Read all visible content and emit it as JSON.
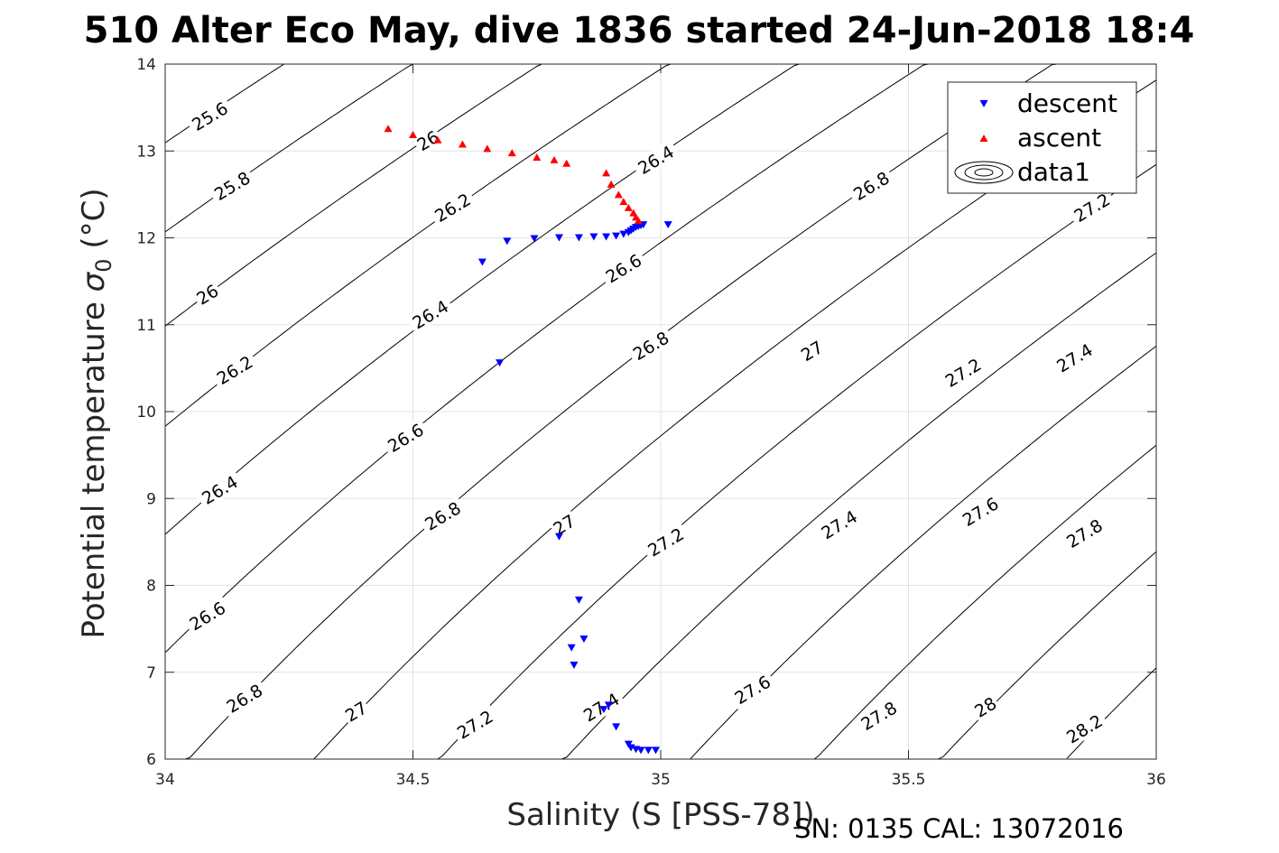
{
  "chart_data": {
    "type": "scatter",
    "title": "510 Alter Eco May, dive 1836 started 24-Jun-2018 18:4",
    "xlabel": "Salinity (S [PSS-78])",
    "ylabel_prefix": "Potential temperature ",
    "ylabel_symbol": "σ",
    "ylabel_sub": "0",
    "ylabel_suffix": " (°C)",
    "footer": "SN: 0135  CAL: 13072016",
    "xlim": [
      34,
      36
    ],
    "ylim": [
      6,
      14
    ],
    "xticks": [
      34,
      34.5,
      35,
      35.5,
      36
    ],
    "xtick_labels": [
      "34",
      "34.5",
      "35",
      "35.5",
      "36"
    ],
    "yticks": [
      6,
      7,
      8,
      9,
      10,
      11,
      12,
      13,
      14
    ],
    "ytick_labels": [
      "6",
      "7",
      "8",
      "9",
      "10",
      "11",
      "12",
      "13",
      "14"
    ],
    "grid": true,
    "legend_position": "top-right",
    "legend": [
      "descent",
      "ascent",
      "data1"
    ],
    "contour_levels": [
      25.6,
      25.8,
      26,
      26.2,
      26.4,
      26.6,
      26.8,
      27,
      27.2,
      27.4,
      27.6,
      27.8,
      28,
      28.2
    ],
    "contour_labels": [
      {
        "text": "25.6",
        "x": 34.09,
        "y": 13.4
      },
      {
        "text": "26",
        "x": 34.53,
        "y": 13.12
      },
      {
        "text": "26.4",
        "x": 34.99,
        "y": 12.9
      },
      {
        "text": "26.6",
        "x": 35.75,
        "y": 13.39
      },
      {
        "text": "25.8",
        "x": 34.135,
        "y": 12.6
      },
      {
        "text": "26.2",
        "x": 34.58,
        "y": 12.35
      },
      {
        "text": "26.8",
        "x": 35.425,
        "y": 12.6
      },
      {
        "text": "27.2",
        "x": 35.87,
        "y": 12.35
      },
      {
        "text": "26",
        "x": 34.085,
        "y": 11.35
      },
      {
        "text": "26.6",
        "x": 34.925,
        "y": 11.65
      },
      {
        "text": "26.4",
        "x": 34.535,
        "y": 11.12
      },
      {
        "text": "26.8",
        "x": 34.98,
        "y": 10.76
      },
      {
        "text": "27",
        "x": 35.305,
        "y": 10.7
      },
      {
        "text": "27.2",
        "x": 35.61,
        "y": 10.45
      },
      {
        "text": "27.4",
        "x": 35.835,
        "y": 10.62
      },
      {
        "text": "26.2",
        "x": 34.14,
        "y": 10.48
      },
      {
        "text": "26.6",
        "x": 34.485,
        "y": 9.7
      },
      {
        "text": "26.4",
        "x": 34.11,
        "y": 9.1
      },
      {
        "text": "26.8",
        "x": 34.56,
        "y": 8.8
      },
      {
        "text": "27",
        "x": 34.805,
        "y": 8.7
      },
      {
        "text": "27.2",
        "x": 35.01,
        "y": 8.5
      },
      {
        "text": "27.4",
        "x": 35.36,
        "y": 8.7
      },
      {
        "text": "27.6",
        "x": 35.645,
        "y": 8.85
      },
      {
        "text": "27.8",
        "x": 35.855,
        "y": 8.6
      },
      {
        "text": "26.6",
        "x": 34.085,
        "y": 7.65
      },
      {
        "text": "26.8",
        "x": 34.16,
        "y": 6.7
      },
      {
        "text": "27",
        "x": 34.385,
        "y": 6.55
      },
      {
        "text": "27.2",
        "x": 34.625,
        "y": 6.4
      },
      {
        "text": "27.4",
        "x": 34.88,
        "y": 6.6
      },
      {
        "text": "27.6",
        "x": 35.185,
        "y": 6.8
      },
      {
        "text": "27.8",
        "x": 35.44,
        "y": 6.5
      },
      {
        "text": "28",
        "x": 35.655,
        "y": 6.6
      },
      {
        "text": "28.2",
        "x": 35.855,
        "y": 6.35
      }
    ],
    "series": [
      {
        "name": "descent",
        "marker": "triangle-down",
        "color": "#0000ff",
        "x": [
          34.64,
          34.69,
          34.745,
          34.795,
          34.835,
          34.865,
          34.89,
          34.91,
          34.925,
          34.935,
          34.94,
          34.945,
          34.95,
          34.955,
          34.96,
          34.965,
          35.015,
          34.675,
          34.795,
          34.835,
          34.845,
          34.82,
          34.825,
          34.895,
          34.885,
          34.91,
          34.935,
          34.94,
          34.95,
          34.96,
          34.975,
          34.99
        ],
        "y": [
          11.72,
          11.96,
          11.99,
          12.0,
          12.0,
          12.01,
          12.01,
          12.02,
          12.04,
          12.06,
          12.08,
          12.1,
          12.12,
          12.13,
          12.14,
          12.15,
          12.15,
          10.56,
          8.56,
          7.83,
          7.38,
          7.28,
          7.08,
          6.62,
          6.57,
          6.37,
          6.17,
          6.13,
          6.11,
          6.1,
          6.1,
          6.1
        ]
      },
      {
        "name": "ascent",
        "marker": "triangle-up",
        "color": "#ff0000",
        "x": [
          34.45,
          34.5,
          34.55,
          34.6,
          34.65,
          34.7,
          34.75,
          34.785,
          34.81,
          34.89,
          34.9,
          34.915,
          34.925,
          34.935,
          34.945,
          34.95,
          34.955
        ],
        "y": [
          13.26,
          13.19,
          13.13,
          13.08,
          13.03,
          12.98,
          12.93,
          12.9,
          12.86,
          12.75,
          12.62,
          12.5,
          12.42,
          12.35,
          12.29,
          12.24,
          12.2
        ]
      }
    ]
  }
}
